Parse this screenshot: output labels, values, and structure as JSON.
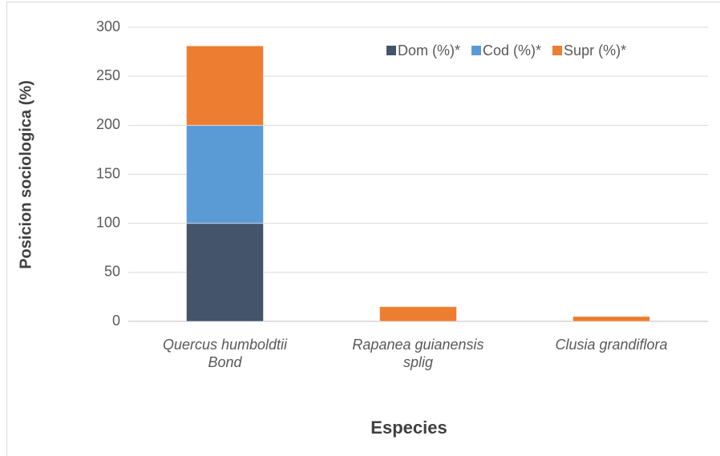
{
  "chart_data": {
    "type": "stacked_bar",
    "y_axis_label": "Posicion sociologica (%)",
    "x_axis_label": "Especies",
    "categories": [
      "Quercus humboldtii Bond",
      "Rapanea guianensis splig",
      "Clusia grandiflora"
    ],
    "series": [
      {
        "name": "Dom (%)*",
        "color": "#44546a",
        "values": [
          100,
          0,
          0
        ]
      },
      {
        "name": "Cod (%)*",
        "color": "#5b9bd5",
        "values": [
          100,
          0,
          0
        ]
      },
      {
        "name": "Supr (%)*",
        "color": "#ed7d31",
        "values": [
          81,
          15,
          5
        ]
      }
    ],
    "ylim": [
      0,
      300
    ],
    "yticks": [
      0,
      50,
      100,
      150,
      200,
      250,
      300
    ],
    "grid": true,
    "legend": "top-right"
  }
}
